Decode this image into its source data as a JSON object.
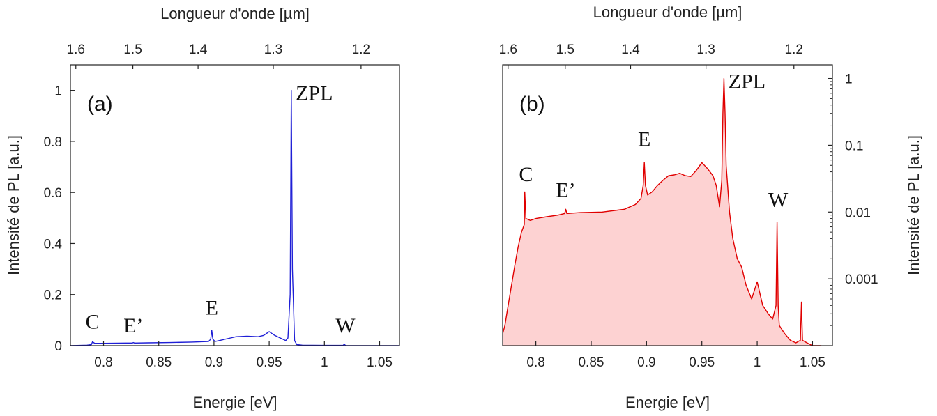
{
  "chart_data": [
    {
      "type": "line",
      "panel_label": "(a)",
      "scale": "linear",
      "color": "#1f1fd6",
      "xlabel": "Energie [eV]",
      "ylabel": "Intensité de PL [a.u.]",
      "top_xlabel": "Longueur d'onde [µm]",
      "xlim": [
        0.77,
        1.068
      ],
      "ylim": [
        0,
        1.1
      ],
      "x_ticks": [
        {
          "value": 0.8,
          "label": "0.8"
        },
        {
          "value": 0.85,
          "label": "0.85"
        },
        {
          "value": 0.9,
          "label": "0.9"
        },
        {
          "value": 0.95,
          "label": "0.95"
        },
        {
          "value": 1.0,
          "label": "1"
        },
        {
          "value": 1.05,
          "label": "1.05"
        }
      ],
      "y_ticks": [
        {
          "value": 0,
          "label": "0"
        },
        {
          "value": 0.2,
          "label": "0.2"
        },
        {
          "value": 0.4,
          "label": "0.4"
        },
        {
          "value": 0.6,
          "label": "0.6"
        },
        {
          "value": 0.8,
          "label": "0.8"
        },
        {
          "value": 1.0,
          "label": "1"
        }
      ],
      "top_ticks": [
        {
          "value": 1.6,
          "label": "1.6"
        },
        {
          "value": 1.5,
          "label": "1.5"
        },
        {
          "value": 1.4,
          "label": "1.4"
        },
        {
          "value": 1.3,
          "label": "1.3"
        },
        {
          "value": 1.2,
          "label": "1.2"
        }
      ],
      "x": [
        0.77,
        0.785,
        0.789,
        0.79,
        0.792,
        0.8,
        0.82,
        0.826,
        0.827,
        0.828,
        0.84,
        0.86,
        0.88,
        0.895,
        0.897,
        0.898,
        0.899,
        0.901,
        0.905,
        0.91,
        0.915,
        0.92,
        0.925,
        0.93,
        0.935,
        0.94,
        0.945,
        0.95,
        0.955,
        0.96,
        0.965,
        0.967,
        0.969,
        0.97,
        0.971,
        0.973,
        0.975,
        0.98,
        1.0,
        1.017,
        1.018,
        1.019,
        1.02,
        1.04,
        1.068
      ],
      "values": [
        0.0,
        0.002,
        0.004,
        0.015,
        0.009,
        0.009,
        0.01,
        0.01,
        0.012,
        0.01,
        0.011,
        0.012,
        0.014,
        0.016,
        0.025,
        0.06,
        0.025,
        0.016,
        0.02,
        0.025,
        0.03,
        0.035,
        0.036,
        0.037,
        0.036,
        0.035,
        0.04,
        0.055,
        0.04,
        0.03,
        0.02,
        0.03,
        0.2,
        1.0,
        0.3,
        0.02,
        0.004,
        0.002,
        0.001,
        0.001,
        0.006,
        0.001,
        0.0,
        0.0,
        0.0
      ],
      "annotations": [
        {
          "text": "C",
          "x": 0.79,
          "y": 0.045
        },
        {
          "text": "E’",
          "x": 0.827,
          "y": 0.03
        },
        {
          "text": "E",
          "x": 0.898,
          "y": 0.1
        },
        {
          "text": "ZPL",
          "x": 0.974,
          "y": 1.0
        },
        {
          "text": "W",
          "x": 1.019,
          "y": 0.03
        }
      ]
    },
    {
      "type": "area",
      "panel_label": "(b)",
      "scale": "log",
      "color": "#e00000",
      "fill": "#fdd2d2",
      "xlabel": "Energie [eV]",
      "ylabel": "Intensité de PL [a.u.]",
      "top_xlabel": "Longueur d'onde [µm]",
      "xlim": [
        0.77,
        1.068
      ],
      "ylim": [
        0.0001,
        1.6
      ],
      "x_ticks": [
        {
          "value": 0.8,
          "label": "0.8"
        },
        {
          "value": 0.85,
          "label": "0.85"
        },
        {
          "value": 0.9,
          "label": "0.9"
        },
        {
          "value": 0.95,
          "label": "0.95"
        },
        {
          "value": 1.0,
          "label": "1"
        },
        {
          "value": 1.05,
          "label": "1.05"
        }
      ],
      "y_ticks": [
        {
          "value": 1,
          "label": "1"
        },
        {
          "value": 0.1,
          "label": "0.1"
        },
        {
          "value": 0.01,
          "label": "0.01"
        },
        {
          "value": 0.001,
          "label": "0.001"
        }
      ],
      "top_ticks": [
        {
          "value": 1.6,
          "label": "1.6"
        },
        {
          "value": 1.5,
          "label": "1.5"
        },
        {
          "value": 1.4,
          "label": "1.4"
        },
        {
          "value": 1.3,
          "label": "1.3"
        },
        {
          "value": 1.2,
          "label": "1.2"
        }
      ],
      "x": [
        0.77,
        0.772,
        0.775,
        0.778,
        0.781,
        0.784,
        0.787,
        0.7895,
        0.79,
        0.791,
        0.795,
        0.8,
        0.81,
        0.82,
        0.826,
        0.827,
        0.828,
        0.84,
        0.86,
        0.88,
        0.89,
        0.895,
        0.897,
        0.898,
        0.899,
        0.901,
        0.905,
        0.91,
        0.915,
        0.92,
        0.925,
        0.93,
        0.935,
        0.94,
        0.945,
        0.95,
        0.955,
        0.96,
        0.963,
        0.966,
        0.968,
        0.969,
        0.97,
        0.971,
        0.972,
        0.975,
        0.978,
        0.982,
        0.986,
        0.99,
        0.995,
        1.0,
        1.005,
        1.01,
        1.014,
        1.017,
        1.018,
        1.019,
        1.02,
        1.025,
        1.03,
        1.035,
        1.039,
        1.04,
        1.041,
        1.045,
        1.05,
        1.055,
        1.058
      ],
      "values": [
        0.00015,
        0.0002,
        0.0004,
        0.0008,
        0.0016,
        0.003,
        0.005,
        0.0065,
        0.02,
        0.008,
        0.0075,
        0.008,
        0.0085,
        0.009,
        0.0095,
        0.011,
        0.0095,
        0.0098,
        0.01,
        0.011,
        0.013,
        0.016,
        0.025,
        0.055,
        0.025,
        0.018,
        0.02,
        0.025,
        0.03,
        0.035,
        0.036,
        0.038,
        0.035,
        0.034,
        0.042,
        0.055,
        0.045,
        0.035,
        0.025,
        0.012,
        0.03,
        0.3,
        1.0,
        0.3,
        0.05,
        0.01,
        0.004,
        0.002,
        0.0015,
        0.0008,
        0.0005,
        0.0009,
        0.0004,
        0.0003,
        0.00025,
        0.0004,
        0.007,
        0.0004,
        0.0002,
        0.00015,
        0.00012,
        0.00011,
        0.00012,
        0.00045,
        0.00012,
        0.00011,
        0.0001,
        0.0001,
        0.0001
      ],
      "annotations": [
        {
          "text": "C",
          "x": 0.791,
          "y": 0.024
        },
        {
          "text": "E’",
          "x": 0.827,
          "y": 0.014
        },
        {
          "text": "E",
          "x": 0.898,
          "y": 0.08
        },
        {
          "text": "ZPL",
          "x": 0.974,
          "y": 1.0
        },
        {
          "text": "W",
          "x": 1.019,
          "y": 0.01
        }
      ]
    }
  ]
}
